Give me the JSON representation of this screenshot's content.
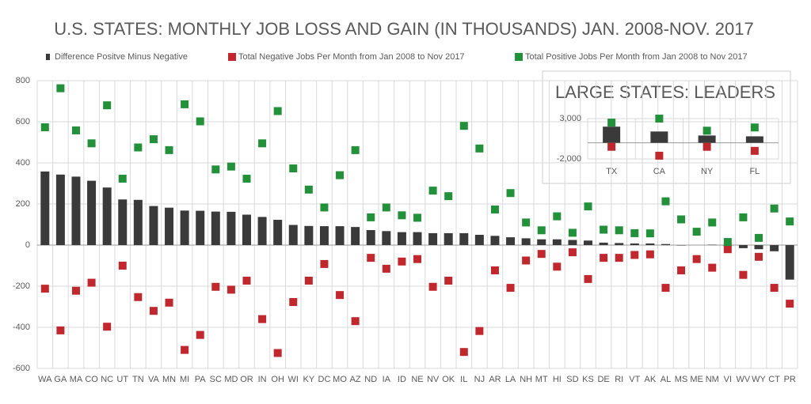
{
  "chart_data": [
    {
      "type": "bar",
      "title": "U.S. STATES: MONTHLY JOB LOSS AND GAIN (IN THOUSANDS) JAN. 2008-NOV. 2017",
      "categories": [
        "WA",
        "GA",
        "MA",
        "CO",
        "NC",
        "UT",
        "TN",
        "VA",
        "MN",
        "MI",
        "PA",
        "SC",
        "MD",
        "OR",
        "IN",
        "OH",
        "WI",
        "KY",
        "DC",
        "MO",
        "AZ",
        "ND",
        "IA",
        "ID",
        "NE",
        "NV",
        "OK",
        "IL",
        "NJ",
        "AR",
        "LA",
        "NH",
        "MT",
        "HI",
        "SD",
        "KS",
        "DE",
        "RI",
        "VT",
        "AK",
        "AL",
        "MS",
        "ME",
        "NM",
        "VI",
        "WV",
        "WY",
        "CT",
        "PR"
      ],
      "series": [
        {
          "name": "Difference Positve Minus Negative",
          "color": "#3a3a3a",
          "kind": "bar",
          "values": [
            358,
            343,
            333,
            313,
            280,
            222,
            220,
            190,
            182,
            168,
            167,
            163,
            162,
            148,
            137,
            123,
            98,
            93,
            92,
            92,
            88,
            73,
            68,
            63,
            63,
            58,
            58,
            58,
            50,
            45,
            38,
            33,
            28,
            28,
            25,
            22,
            12,
            10,
            8,
            8,
            5,
            -2,
            0,
            2,
            -3,
            -15,
            -20,
            -30,
            -168
          ]
        },
        {
          "name": "Total Negative Jobs Per Month from Jan 2008 to Nov 2017",
          "color": "#c0282d",
          "kind": "square",
          "values": [
            -212,
            -415,
            -222,
            -183,
            -397,
            -100,
            -253,
            -320,
            -280,
            -510,
            -437,
            -203,
            -217,
            -173,
            -360,
            -525,
            -277,
            -173,
            -92,
            -243,
            -370,
            -62,
            -115,
            -80,
            -68,
            -203,
            -173,
            -520,
            -418,
            -123,
            -208,
            -75,
            -43,
            -105,
            -35,
            -165,
            -62,
            -62,
            -48,
            -45,
            -208,
            -123,
            -68,
            -110,
            -20,
            -145,
            -57,
            -208,
            -285
          ]
        },
        {
          "name": "Total Positive Jobs Per Month from Jan 2008 to Nov 2017",
          "color": "#23903a",
          "kind": "square",
          "values": [
            573,
            763,
            558,
            495,
            680,
            323,
            475,
            515,
            462,
            685,
            602,
            368,
            382,
            323,
            495,
            652,
            373,
            270,
            183,
            340,
            462,
            135,
            183,
            145,
            133,
            265,
            238,
            580,
            470,
            173,
            253,
            110,
            72,
            140,
            60,
            188,
            75,
            72,
            58,
            57,
            213,
            125,
            65,
            110,
            15,
            135,
            35,
            178,
            115
          ]
        }
      ],
      "ylim": [
        -600,
        800
      ],
      "yticks": [
        -600,
        -400,
        -200,
        0,
        200,
        400,
        600,
        800
      ],
      "grid": true
    },
    {
      "type": "bar",
      "title": "LARGE STATES: LEADERS",
      "categories": [
        "TX",
        "CA",
        "NY",
        "FL"
      ],
      "series": [
        {
          "color": "#3a3a3a",
          "kind": "bar",
          "values": [
            2000,
            1400,
            900,
            800
          ]
        },
        {
          "color": "#c0282d",
          "kind": "square",
          "values": [
            -500,
            -1600,
            -500,
            -1000
          ]
        },
        {
          "color": "#23903a",
          "kind": "square",
          "values": [
            2500,
            3000,
            1500,
            1900
          ]
        }
      ],
      "ylim": [
        -2000,
        3000
      ],
      "yticks": [
        {
          "value": -2000,
          "label": "-2,000"
        },
        {
          "value": 3000,
          "label": "3,000"
        }
      ],
      "grid": true
    }
  ]
}
